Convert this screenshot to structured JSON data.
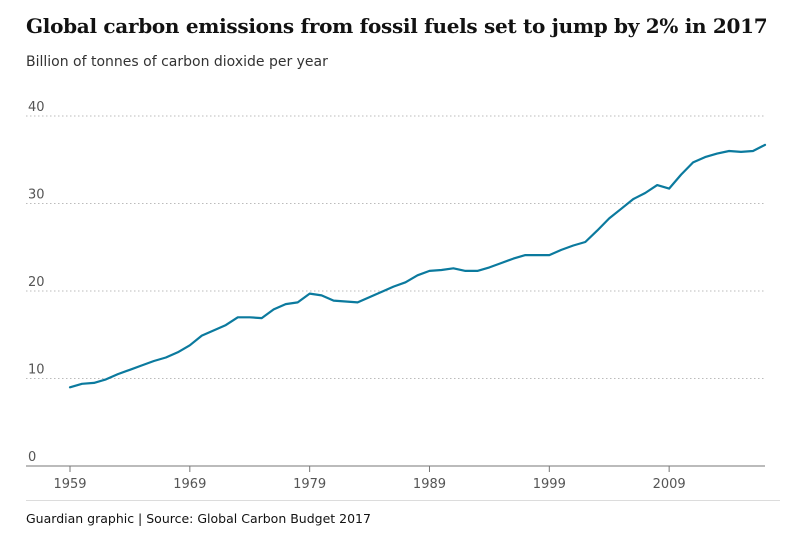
{
  "title": "Global carbon emissions from fossil fuels set to jump by 2% in 2017",
  "subtitle": "Billion of tonnes of carbon dioxide per year",
  "footer": "Guardian graphic | Source: Global Carbon Budget 2017",
  "colors": {
    "line": "#0b7a9e",
    "grid": "#bbbbbb",
    "axis": "#777777"
  },
  "chart_data": {
    "type": "line",
    "title": "Global carbon emissions from fossil fuels set to jump by 2% in 2017",
    "ylabel": "Billion of tonnes of carbon dioxide per year",
    "xlabel": "",
    "xlim": [
      1959,
      2017
    ],
    "ylim": [
      0,
      40
    ],
    "x_ticks": [
      1959,
      1969,
      1979,
      1989,
      1999,
      2009
    ],
    "x_tick_labels": [
      "1959",
      "1969",
      "1979",
      "1989",
      "1999",
      "2009"
    ],
    "y_ticks": [
      0,
      10,
      20,
      30,
      40
    ],
    "y_tick_labels": [
      "0",
      "10",
      "20",
      "30",
      "40"
    ],
    "grid": true,
    "series": [
      {
        "x": [
          1959,
          1960,
          1961,
          1962,
          1963,
          1964,
          1965,
          1966,
          1967,
          1968,
          1969,
          1970,
          1971,
          1972,
          1973,
          1974,
          1975,
          1976,
          1977,
          1978,
          1979,
          1980,
          1981,
          1982,
          1983,
          1984,
          1985,
          1986,
          1987,
          1988,
          1989,
          1990,
          1991,
          1992,
          1993,
          1994,
          1995,
          1996,
          1997,
          1998,
          1999,
          2000,
          2001,
          2002,
          2003,
          2004,
          2005,
          2006,
          2007,
          2008,
          2009,
          2010,
          2011,
          2012,
          2013,
          2014,
          2015,
          2016,
          2017
        ],
        "values": [
          9.0,
          9.4,
          9.5,
          9.9,
          10.5,
          11.0,
          11.5,
          12.0,
          12.4,
          13.0,
          13.8,
          14.9,
          15.5,
          16.1,
          17.0,
          17.0,
          16.9,
          17.9,
          18.5,
          18.7,
          19.7,
          19.5,
          18.9,
          18.8,
          18.7,
          19.3,
          19.9,
          20.5,
          21.0,
          21.8,
          22.3,
          22.4,
          22.6,
          22.3,
          22.3,
          22.7,
          23.2,
          23.7,
          24.1,
          24.1,
          24.1,
          24.7,
          25.2,
          25.6,
          26.9,
          28.3,
          29.4,
          30.5,
          31.2,
          32.1,
          31.7,
          33.3,
          34.7,
          35.3,
          35.7,
          36.0,
          35.9,
          36.0,
          36.7
        ]
      }
    ]
  }
}
